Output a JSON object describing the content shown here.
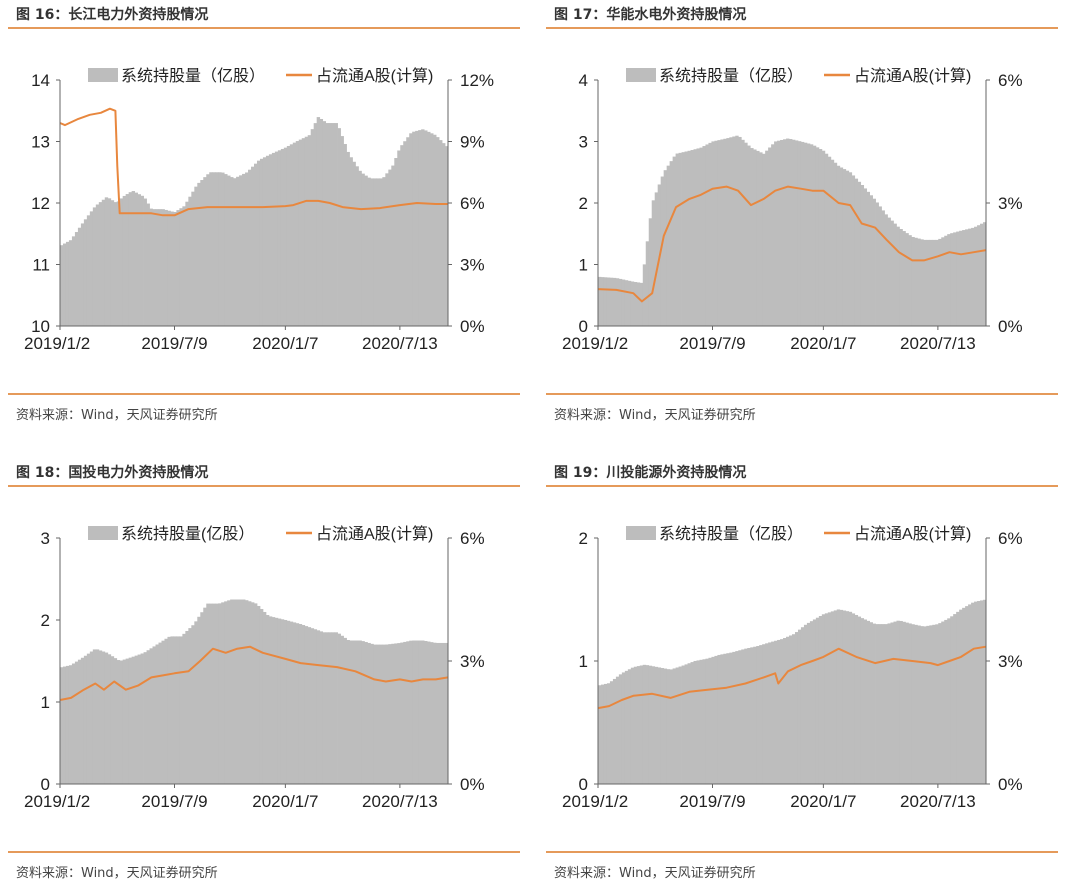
{
  "panels": [
    {
      "title": "图 16：长江电力外资持股情况",
      "source": "资料来源：Wind，天风证券研究所",
      "legend_bar": "系统持股量（亿股）",
      "legend_line": "占流通A股(计算)"
    },
    {
      "title": "图 17：华能水电外资持股情况",
      "source": "资料来源：Wind，天风证券研究所",
      "legend_bar": "系统持股量（亿股）",
      "legend_line": "占流通A股(计算)"
    },
    {
      "title": "图 18：国投电力外资持股情况",
      "source": "资料来源：Wind，天风证券研究所",
      "legend_bar": "系统持股量(亿股）",
      "legend_line": "占流通A股(计算)"
    },
    {
      "title": "图 19：川投能源外资持股情况",
      "source": "资料来源：Wind，天风证券研究所",
      "legend_bar": "系统持股量（亿股）",
      "legend_line": "占流通A股(计算)"
    }
  ],
  "colors": {
    "bar": "#bdbdbd",
    "line": "#e8873e",
    "rule": "#e59a5a"
  },
  "chart_data": [
    {
      "type": "bar+line",
      "x_ticks": [
        "2019/1/2",
        "2019/7/9",
        "2020/1/7",
        "2020/7/13"
      ],
      "x_range": [
        "2019/1/2",
        "2020/9/30"
      ],
      "ylim_left": [
        10,
        14
      ],
      "yticks_left": [
        "10",
        "11",
        "12",
        "13",
        "14"
      ],
      "ylim_right": [
        0,
        12
      ],
      "yticks_right": [
        "0%",
        "3%",
        "6%",
        "9%",
        "12%"
      ],
      "series": [
        {
          "name": "系统持股量（亿股）",
          "kind": "bar",
          "axis": "left",
          "x": [
            "2019/1/2",
            "2019/1/20",
            "2019/2/10",
            "2019/3/1",
            "2019/3/20",
            "2019/4/5",
            "2019/4/15",
            "2019/5/1",
            "2019/5/20",
            "2019/6/1",
            "2019/6/20",
            "2019/7/9",
            "2019/7/25",
            "2019/8/15",
            "2019/9/5",
            "2019/9/25",
            "2019/10/15",
            "2019/11/5",
            "2019/11/25",
            "2019/12/15",
            "2020/1/7",
            "2020/1/25",
            "2020/2/15",
            "2020/3/1",
            "2020/3/15",
            "2020/4/1",
            "2020/4/20",
            "2020/5/10",
            "2020/5/25",
            "2020/6/15",
            "2020/7/1",
            "2020/7/13",
            "2020/8/1",
            "2020/8/20",
            "2020/9/10",
            "2020/9/30"
          ],
          "values": [
            11.3,
            11.4,
            11.7,
            11.95,
            12.1,
            12.0,
            12.1,
            12.2,
            12.1,
            11.9,
            11.9,
            11.85,
            11.95,
            12.3,
            12.5,
            12.5,
            12.4,
            12.5,
            12.7,
            12.8,
            12.9,
            13.0,
            13.1,
            13.4,
            13.3,
            13.3,
            12.8,
            12.5,
            12.4,
            12.4,
            12.6,
            12.9,
            13.15,
            13.2,
            13.1,
            12.9
          ]
        },
        {
          "name": "占流通A股(计算)",
          "kind": "line",
          "axis": "right",
          "x": [
            "2019/1/2",
            "2019/1/10",
            "2019/2/1",
            "2019/2/20",
            "2019/3/10",
            "2019/3/25",
            "2019/4/3",
            "2019/4/6",
            "2019/4/10",
            "2019/5/1",
            "2019/6/1",
            "2019/6/20",
            "2019/7/9",
            "2019/8/1",
            "2019/9/1",
            "2019/10/1",
            "2019/11/1",
            "2019/12/1",
            "2020/1/7",
            "2020/1/20",
            "2020/2/10",
            "2020/3/1",
            "2020/3/20",
            "2020/4/10",
            "2020/5/10",
            "2020/6/10",
            "2020/7/13",
            "2020/8/10",
            "2020/9/10",
            "2020/9/30"
          ],
          "values": [
            9.9,
            9.8,
            10.1,
            10.3,
            10.4,
            10.6,
            10.5,
            7.8,
            5.5,
            5.5,
            5.5,
            5.4,
            5.4,
            5.7,
            5.8,
            5.8,
            5.8,
            5.8,
            5.85,
            5.9,
            6.1,
            6.1,
            6.0,
            5.8,
            5.7,
            5.75,
            5.9,
            6.0,
            5.95,
            5.95
          ]
        }
      ]
    },
    {
      "type": "bar+line",
      "x_ticks": [
        "2019/1/2",
        "2019/7/9",
        "2020/1/7",
        "2020/7/13"
      ],
      "x_range": [
        "2019/1/2",
        "2020/9/30"
      ],
      "ylim_left": [
        0,
        4
      ],
      "yticks_left": [
        "0",
        "1",
        "2",
        "3",
        "4"
      ],
      "ylim_right": [
        0,
        6
      ],
      "yticks_right": [
        "0%",
        "3%",
        "6%"
      ],
      "series": [
        {
          "name": "系统持股量（亿股）",
          "kind": "bar",
          "axis": "left",
          "x": [
            "2019/1/2",
            "2019/2/1",
            "2019/3/1",
            "2019/3/15",
            "2019/4/1",
            "2019/4/20",
            "2019/5/10",
            "2019/6/1",
            "2019/6/20",
            "2019/7/9",
            "2019/8/1",
            "2019/8/20",
            "2019/9/10",
            "2019/10/1",
            "2019/10/20",
            "2019/11/10",
            "2019/12/1",
            "2019/12/20",
            "2020/1/7",
            "2020/2/1",
            "2020/2/20",
            "2020/3/10",
            "2020/4/1",
            "2020/4/20",
            "2020/5/10",
            "2020/6/1",
            "2020/6/20",
            "2020/7/13",
            "2020/8/1",
            "2020/8/20",
            "2020/9/10",
            "2020/9/30"
          ],
          "values": [
            0.8,
            0.78,
            0.72,
            0.7,
            2.0,
            2.5,
            2.8,
            2.85,
            2.9,
            3.0,
            3.05,
            3.1,
            2.9,
            2.8,
            3.0,
            3.05,
            3.0,
            2.95,
            2.85,
            2.6,
            2.5,
            2.3,
            2.05,
            1.8,
            1.6,
            1.45,
            1.4,
            1.4,
            1.5,
            1.55,
            1.6,
            1.7
          ]
        },
        {
          "name": "占流通A股(计算)",
          "kind": "line",
          "axis": "right",
          "x": [
            "2019/1/2",
            "2019/2/1",
            "2019/3/1",
            "2019/3/15",
            "2019/4/1",
            "2019/4/20",
            "2019/5/10",
            "2019/6/1",
            "2019/6/20",
            "2019/7/9",
            "2019/8/1",
            "2019/8/20",
            "2019/9/10",
            "2019/10/1",
            "2019/10/20",
            "2019/11/10",
            "2019/12/1",
            "2019/12/20",
            "2020/1/7",
            "2020/2/1",
            "2020/2/20",
            "2020/3/10",
            "2020/4/1",
            "2020/4/20",
            "2020/5/10",
            "2020/6/1",
            "2020/6/20",
            "2020/7/13",
            "2020/8/1",
            "2020/8/20",
            "2020/9/10",
            "2020/9/30"
          ],
          "values": [
            0.9,
            0.88,
            0.8,
            0.6,
            0.8,
            2.2,
            2.9,
            3.1,
            3.2,
            3.35,
            3.4,
            3.3,
            2.95,
            3.1,
            3.3,
            3.4,
            3.35,
            3.3,
            3.3,
            3.0,
            2.95,
            2.5,
            2.4,
            2.1,
            1.8,
            1.6,
            1.6,
            1.7,
            1.8,
            1.75,
            1.8,
            1.85
          ]
        }
      ]
    },
    {
      "type": "bar+line",
      "x_ticks": [
        "2019/1/2",
        "2019/7/9",
        "2020/1/7",
        "2020/7/13"
      ],
      "x_range": [
        "2019/1/2",
        "2020/9/30"
      ],
      "ylim_left": [
        0,
        3
      ],
      "yticks_left": [
        "0",
        "1",
        "2",
        "3"
      ],
      "ylim_right": [
        0,
        6
      ],
      "yticks_right": [
        "0%",
        "3%",
        "6%"
      ],
      "series": [
        {
          "name": "系统持股量(亿股）",
          "kind": "bar",
          "axis": "left",
          "x": [
            "2019/1/2",
            "2019/1/20",
            "2019/2/10",
            "2019/3/1",
            "2019/3/20",
            "2019/4/10",
            "2019/5/1",
            "2019/5/20",
            "2019/6/10",
            "2019/7/1",
            "2019/7/20",
            "2019/8/10",
            "2019/9/1",
            "2019/9/20",
            "2019/10/10",
            "2019/11/1",
            "2019/11/20",
            "2019/12/10",
            "2020/1/7",
            "2020/2/1",
            "2020/2/20",
            "2020/3/10",
            "2020/4/1",
            "2020/4/20",
            "2020/5/10",
            "2020/6/1",
            "2020/6/20",
            "2020/7/13",
            "2020/8/1",
            "2020/8/20",
            "2020/9/10",
            "2020/9/30"
          ],
          "values": [
            1.42,
            1.45,
            1.55,
            1.65,
            1.6,
            1.5,
            1.55,
            1.6,
            1.7,
            1.8,
            1.8,
            1.95,
            2.2,
            2.2,
            2.25,
            2.25,
            2.2,
            2.05,
            2.0,
            1.95,
            1.9,
            1.85,
            1.85,
            1.75,
            1.75,
            1.7,
            1.7,
            1.72,
            1.75,
            1.75,
            1.72,
            1.72
          ]
        },
        {
          "name": "占流通A股(计算)",
          "kind": "line",
          "axis": "right",
          "x": [
            "2019/1/2",
            "2019/1/20",
            "2019/2/10",
            "2019/3/1",
            "2019/3/15",
            "2019/4/1",
            "2019/4/20",
            "2019/5/10",
            "2019/6/1",
            "2019/6/20",
            "2019/7/9",
            "2019/8/1",
            "2019/8/20",
            "2019/9/10",
            "2019/10/1",
            "2019/10/20",
            "2019/11/10",
            "2019/12/1",
            "2020/1/7",
            "2020/2/1",
            "2020/3/1",
            "2020/4/1",
            "2020/5/1",
            "2020/6/1",
            "2020/6/20",
            "2020/7/13",
            "2020/8/1",
            "2020/8/20",
            "2020/9/10",
            "2020/9/30"
          ],
          "values": [
            2.05,
            2.1,
            2.3,
            2.45,
            2.3,
            2.5,
            2.3,
            2.4,
            2.6,
            2.65,
            2.7,
            2.75,
            3.0,
            3.3,
            3.2,
            3.3,
            3.35,
            3.2,
            3.05,
            2.95,
            2.9,
            2.85,
            2.75,
            2.55,
            2.5,
            2.55,
            2.5,
            2.55,
            2.55,
            2.6
          ]
        }
      ]
    },
    {
      "type": "bar+line",
      "x_ticks": [
        "2019/1/2",
        "2019/7/9",
        "2020/1/7",
        "2020/7/13"
      ],
      "x_range": [
        "2019/1/2",
        "2020/9/30"
      ],
      "ylim_left": [
        0,
        2
      ],
      "yticks_left": [
        "0",
        "1",
        "2"
      ],
      "ylim_right": [
        0,
        6
      ],
      "yticks_right": [
        "0%",
        "3%",
        "6%"
      ],
      "series": [
        {
          "name": "系统持股量（亿股）",
          "kind": "bar",
          "axis": "left",
          "x": [
            "2019/1/2",
            "2019/1/20",
            "2019/2/10",
            "2019/3/1",
            "2019/3/20",
            "2019/4/10",
            "2019/5/1",
            "2019/5/20",
            "2019/6/10",
            "2019/7/1",
            "2019/7/20",
            "2019/8/10",
            "2019/9/1",
            "2019/9/20",
            "2019/10/10",
            "2019/11/1",
            "2019/11/20",
            "2019/12/10",
            "2020/1/7",
            "2020/2/1",
            "2020/2/20",
            "2020/3/10",
            "2020/4/1",
            "2020/4/20",
            "2020/5/10",
            "2020/6/1",
            "2020/6/20",
            "2020/7/13",
            "2020/8/1",
            "2020/8/20",
            "2020/9/10",
            "2020/9/30"
          ],
          "values": [
            0.8,
            0.82,
            0.9,
            0.95,
            0.97,
            0.95,
            0.93,
            0.96,
            1.0,
            1.02,
            1.05,
            1.07,
            1.1,
            1.12,
            1.15,
            1.18,
            1.22,
            1.3,
            1.38,
            1.42,
            1.4,
            1.35,
            1.3,
            1.3,
            1.33,
            1.3,
            1.28,
            1.3,
            1.35,
            1.42,
            1.48,
            1.5
          ]
        },
        {
          "name": "占流通A股(计算)",
          "kind": "line",
          "axis": "right",
          "x": [
            "2019/1/2",
            "2019/1/20",
            "2019/2/10",
            "2019/3/1",
            "2019/4/1",
            "2019/5/1",
            "2019/6/1",
            "2019/7/1",
            "2019/8/1",
            "2019/9/1",
            "2019/10/1",
            "2019/10/20",
            "2019/10/25",
            "2019/11/10",
            "2019/12/1",
            "2019/12/20",
            "2020/1/7",
            "2020/2/1",
            "2020/3/1",
            "2020/4/1",
            "2020/5/1",
            "2020/6/1",
            "2020/7/1",
            "2020/7/13",
            "2020/8/1",
            "2020/8/20",
            "2020/9/10",
            "2020/9/30"
          ],
          "values": [
            1.85,
            1.9,
            2.05,
            2.15,
            2.2,
            2.1,
            2.25,
            2.3,
            2.35,
            2.45,
            2.6,
            2.7,
            2.45,
            2.75,
            2.9,
            3.0,
            3.1,
            3.3,
            3.1,
            2.95,
            3.05,
            3.0,
            2.95,
            2.9,
            3.0,
            3.1,
            3.3,
            3.35
          ]
        }
      ]
    }
  ]
}
